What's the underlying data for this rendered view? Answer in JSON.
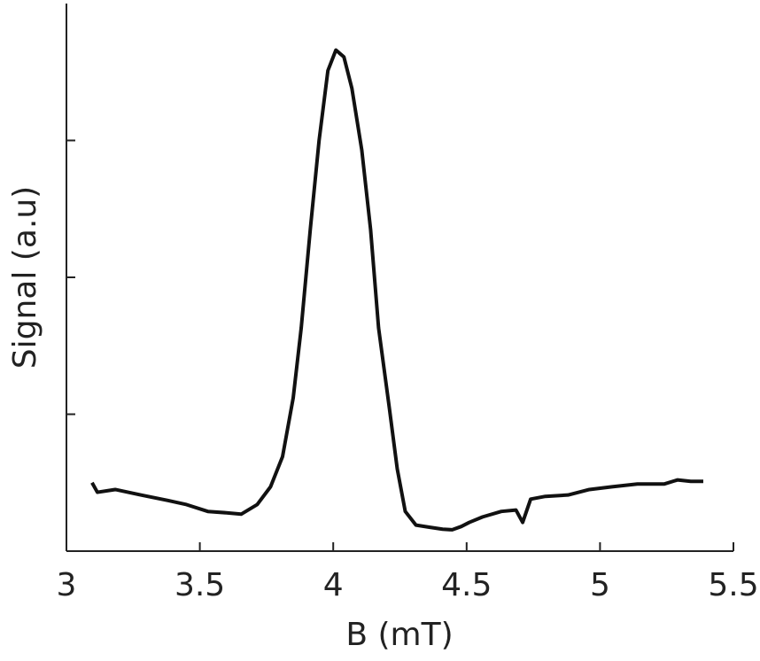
{
  "chart_data": {
    "type": "line",
    "xlabel": "B (mT)",
    "ylabel": "Signal (a.u)",
    "x": [
      3.096,
      3.116,
      3.183,
      3.28,
      3.38,
      3.45,
      3.53,
      3.6,
      3.655,
      3.715,
      3.765,
      3.81,
      3.85,
      3.88,
      3.914,
      3.947,
      3.98,
      4.01,
      4.04,
      4.07,
      4.107,
      4.14,
      4.17,
      4.21,
      4.24,
      4.27,
      4.31,
      4.36,
      4.41,
      4.446,
      4.48,
      4.51,
      4.56,
      4.63,
      4.685,
      4.71,
      4.74,
      4.795,
      4.88,
      4.96,
      5.045,
      5.14,
      5.24,
      5.29,
      5.34,
      5.387
    ],
    "series": [
      {
        "color": "#111111",
        "values": [
          0.5,
          0.43,
          0.45,
          0.41,
          0.37,
          0.34,
          0.29,
          0.28,
          0.27,
          0.34,
          0.47,
          0.69,
          1.12,
          1.63,
          2.35,
          3.0,
          3.51,
          3.66,
          3.61,
          3.38,
          2.93,
          2.35,
          1.63,
          1.05,
          0.6,
          0.29,
          0.19,
          0.175,
          0.16,
          0.156,
          0.18,
          0.21,
          0.25,
          0.29,
          0.3,
          0.21,
          0.38,
          0.4,
          0.41,
          0.45,
          0.47,
          0.49,
          0.49,
          0.52,
          0.51,
          0.51
        ]
      }
    ],
    "xlim": [
      3,
      5.5
    ],
    "xticks": [
      3,
      3.5,
      4,
      4.5,
      5,
      5.5
    ],
    "ylim": [
      0,
      4
    ],
    "yticks": [
      1,
      2,
      3
    ]
  }
}
